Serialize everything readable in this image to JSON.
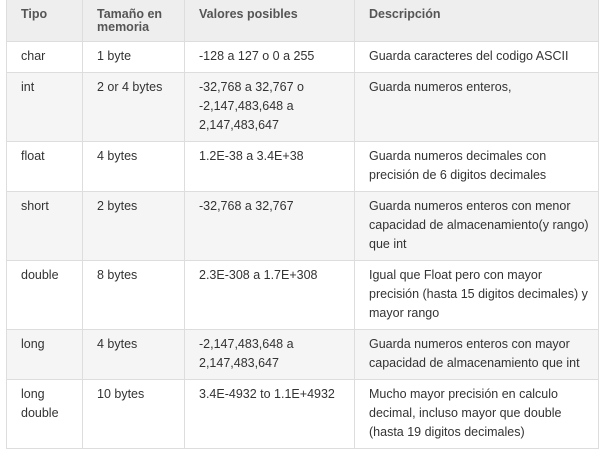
{
  "table": {
    "headers": [
      "Tipo",
      "Tamaño en memoria",
      "Valores posibles",
      "Descripción"
    ],
    "rows": [
      {
        "tipo": "char",
        "tamano": "1 byte",
        "valores": "-128 a 127 o 0 a 255",
        "descripcion": " Guarda caracteres del codigo ASCII"
      },
      {
        "tipo": "int",
        "tamano": "2 or 4 bytes",
        "valores": "-32,768 a 32,767 o -2,147,483,648 a 2,147,483,647",
        "descripcion": "Guarda numeros enteros,"
      },
      {
        "tipo": "float",
        "tamano": "4 bytes",
        "valores": "1.2E-38 a 3.4E+38",
        "descripcion": " Guarda numeros decimales con precisión de 6 digitos decimales"
      },
      {
        "tipo": "short",
        "tamano": "2 bytes",
        "valores": "-32,768 a 32,767",
        "descripcion": " Guarda numeros enteros con menor capacidad de almacenamiento(y rango) que int"
      },
      {
        "tipo": "double",
        "tamano": "8 bytes",
        "valores": "2.3E-308 a 1.7E+308",
        "descripcion": " Igual que Float pero con mayor precisión (hasta 15 digitos decimales) y mayor rango"
      },
      {
        "tipo": "long",
        "tamano": "4 bytes",
        "valores": "-2,147,483,648 a 2,147,483,647",
        "descripcion": " Guarda numeros enteros con mayor capacidad de almacenamiento que int"
      },
      {
        "tipo": "long double",
        "tamano": "10 bytes",
        "valores": "3.4E-4932 to 1.1E+4932",
        "descripcion": " Mucho mayor precisión en calculo decimal, incluso mayor que double (hasta 19 digitos decimales)"
      }
    ]
  }
}
